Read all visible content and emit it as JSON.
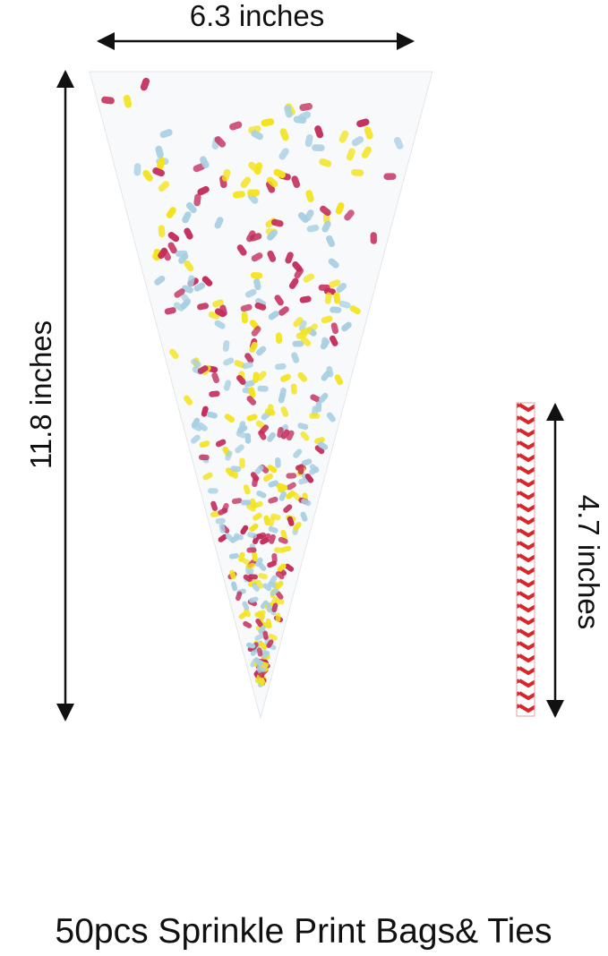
{
  "dimensions": {
    "width": "6.3 inches",
    "height": "11.8 inches",
    "tie_length": "4.7 inches"
  },
  "caption": "50pcs Sprinkle Print Bags& Ties"
}
